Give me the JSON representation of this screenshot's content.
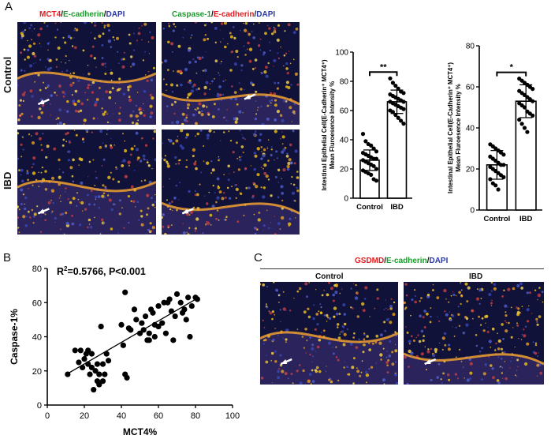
{
  "panel_labels": {
    "a": "A",
    "b": "B",
    "c": "C"
  },
  "panelA": {
    "col1": {
      "p1": "MCT4",
      "sep1": "/",
      "p2": "E-cadherin",
      "sep2": "/",
      "p3": "DAPI"
    },
    "col2": {
      "p1": "Caspase-1",
      "sep1": "/",
      "p2": "E-cadherin",
      "sep2": "/",
      "p3": "DAPI"
    },
    "row_control": "Control",
    "row_ibd": "IBD",
    "image_names": [
      "mct4-control-image",
      "caspase1-control-image",
      "mct4-ibd-image",
      "caspase1-ibd-image"
    ]
  },
  "panelC": {
    "title": {
      "p1": "GSDMD",
      "sep1": "/",
      "p2": "E-cadherin",
      "sep2": "/",
      "p3": "DAPI"
    },
    "col_control": "Control",
    "col_ibd": "IBD"
  },
  "colors": {
    "bar_fill": "#ffffff",
    "point": "#000000",
    "red_stain": "#e41a1c",
    "green_stain": "#1a9e2a",
    "blue_stain": "#2b3aa8"
  },
  "chart_data": [
    {
      "id": "bar1",
      "type": "bar",
      "categories": [
        "Control",
        "IBD"
      ],
      "values": [
        26,
        66
      ],
      "errors": [
        7,
        8
      ],
      "points": [
        [
          44,
          39,
          37,
          36,
          34,
          32,
          31,
          30,
          29,
          28,
          27,
          27,
          26,
          25,
          24,
          23,
          22,
          20,
          19,
          18,
          17,
          16,
          13,
          12
        ],
        [
          82,
          79,
          77,
          75,
          73,
          72,
          71,
          70,
          69,
          68,
          67,
          66,
          66,
          65,
          64,
          63,
          62,
          61,
          60,
          59,
          57,
          55,
          53,
          51
        ]
      ],
      "ylim": [
        0,
        100
      ],
      "yticks": [
        "0",
        "20",
        "40",
        "60",
        "80",
        "100"
      ],
      "ylabel_line1": "Intestinal Epithelial Cell(E-Cadherin⁺ MCT4⁺)",
      "ylabel_line2": "Mean Fluroesence Intensity %",
      "significance": "**"
    },
    {
      "id": "bar2",
      "type": "bar",
      "categories": [
        "Control",
        "IBD"
      ],
      "values": [
        22,
        53
      ],
      "errors": [
        7,
        8
      ],
      "points": [
        [
          32,
          31,
          30,
          29,
          28,
          27,
          26,
          25,
          24,
          23,
          22,
          22,
          21,
          20,
          19,
          18,
          17,
          16,
          15,
          13,
          12,
          10
        ],
        [
          64,
          63,
          62,
          61,
          60,
          59,
          58,
          57,
          56,
          55,
          54,
          53,
          52,
          51,
          50,
          48,
          47,
          46,
          44,
          42,
          40,
          38
        ]
      ],
      "ylim": [
        0,
        80
      ],
      "yticks": [
        "0",
        "20",
        "40",
        "60",
        "80"
      ],
      "ylabel_line1": "Intestinal Epithelial Cell(E-Cadherin⁺ MCT4⁺)",
      "ylabel_line2": "Mean Fluroesence Intensity %",
      "significance": "*"
    },
    {
      "id": "scatter",
      "type": "scatter",
      "xlabel": "MCT4%",
      "ylabel": "Caspase-1%",
      "xlim": [
        0,
        100
      ],
      "ylim": [
        0,
        80
      ],
      "xticks": [
        "0",
        "20",
        "40",
        "60",
        "80",
        "100"
      ],
      "yticks": [
        "0",
        "20",
        "40",
        "60",
        "80"
      ],
      "annotation_main": "R",
      "annotation_sup": "2",
      "annotation_rest": "=0.5766, P<0.001",
      "regression": {
        "slope": 0.63,
        "intercept": 11.5
      },
      "points": [
        [
          11,
          18
        ],
        [
          15,
          32
        ],
        [
          17,
          25
        ],
        [
          18,
          32
        ],
        [
          19,
          22
        ],
        [
          20,
          27
        ],
        [
          21,
          30
        ],
        [
          22,
          24
        ],
        [
          22,
          32
        ],
        [
          23,
          18
        ],
        [
          24,
          30
        ],
        [
          24,
          22
        ],
        [
          25,
          9
        ],
        [
          26,
          20
        ],
        [
          27,
          24
        ],
        [
          27,
          14
        ],
        [
          28,
          12
        ],
        [
          28,
          18
        ],
        [
          29,
          46
        ],
        [
          30,
          14
        ],
        [
          30,
          24
        ],
        [
          31,
          18
        ],
        [
          32,
          30
        ],
        [
          33,
          26
        ],
        [
          40,
          47
        ],
        [
          41,
          35
        ],
        [
          42,
          18
        ],
        [
          42,
          66
        ],
        [
          43,
          16
        ],
        [
          44,
          45
        ],
        [
          45,
          44
        ],
        [
          47,
          56
        ],
        [
          48,
          50
        ],
        [
          50,
          42
        ],
        [
          51,
          48
        ],
        [
          52,
          44
        ],
        [
          53,
          52
        ],
        [
          54,
          38
        ],
        [
          55,
          38
        ],
        [
          55,
          42
        ],
        [
          56,
          56
        ],
        [
          57,
          54
        ],
        [
          58,
          47
        ],
        [
          58,
          40
        ],
        [
          60,
          58
        ],
        [
          60,
          46
        ],
        [
          62,
          48
        ],
        [
          63,
          60
        ],
        [
          64,
          42
        ],
        [
          65,
          60
        ],
        [
          66,
          62
        ],
        [
          67,
          55
        ],
        [
          68,
          38
        ],
        [
          69,
          52
        ],
        [
          70,
          65
        ],
        [
          72,
          60
        ],
        [
          73,
          54
        ],
        [
          74,
          56
        ],
        [
          75,
          50
        ],
        [
          76,
          63
        ],
        [
          77,
          40
        ],
        [
          78,
          58
        ],
        [
          80,
          63
        ],
        [
          81,
          62
        ]
      ]
    }
  ]
}
